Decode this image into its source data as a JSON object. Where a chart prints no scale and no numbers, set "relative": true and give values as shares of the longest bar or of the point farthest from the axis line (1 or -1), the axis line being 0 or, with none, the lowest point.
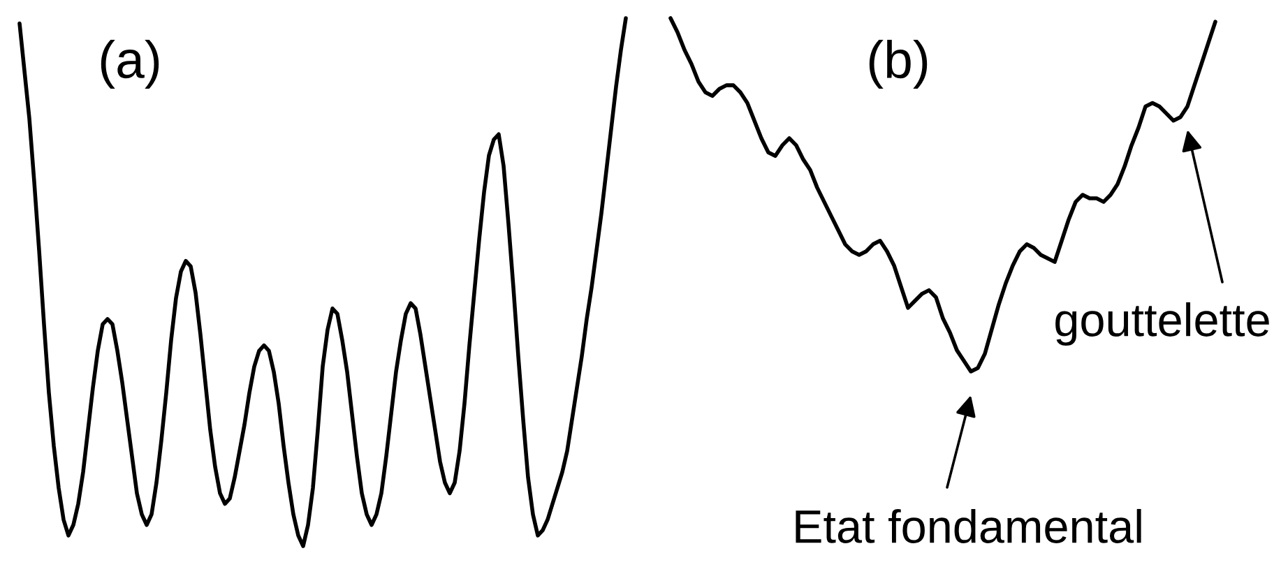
{
  "chart_data": [
    {
      "type": "line",
      "title": "(a)",
      "relative": true,
      "categories": [
        null,
        null,
        null,
        null,
        null,
        null,
        null,
        null,
        null,
        null,
        null,
        null,
        null,
        null,
        null,
        null,
        null,
        null,
        null,
        null,
        null,
        null,
        null,
        null,
        null,
        null,
        null,
        null,
        null,
        null,
        null,
        null,
        null,
        null,
        null,
        null,
        null,
        null,
        null,
        null,
        null,
        null,
        null,
        null,
        null,
        null,
        null,
        null,
        null,
        null,
        null,
        null,
        null,
        null,
        null,
        null,
        null,
        null,
        null,
        null,
        null,
        null,
        null,
        null,
        null,
        null,
        null,
        null,
        null,
        null,
        null,
        null,
        null,
        null,
        null,
        null,
        null,
        null,
        null,
        null,
        null,
        null,
        null,
        null,
        null,
        null,
        null,
        null,
        null,
        null,
        null,
        null,
        null,
        null,
        null,
        null,
        null,
        null,
        null,
        null,
        null,
        null,
        null,
        null,
        null,
        null,
        null,
        null,
        null,
        null,
        null,
        null,
        null,
        null,
        null,
        null,
        null,
        null,
        null,
        null,
        null,
        null,
        null,
        null,
        null
      ],
      "series": [
        {
          "color": "#000000",
          "values": [
            0.99,
            0.9,
            0.81,
            0.69,
            0.56,
            0.42,
            0.29,
            0.19,
            0.11,
            0.05,
            0.02,
            0.04,
            0.08,
            0.14,
            0.22,
            0.3,
            0.37,
            0.42,
            0.43,
            0.42,
            0.37,
            0.31,
            0.24,
            0.17,
            0.1,
            0.06,
            0.04,
            0.06,
            0.12,
            0.2,
            0.29,
            0.39,
            0.47,
            0.52,
            0.54,
            0.53,
            0.48,
            0.4,
            0.31,
            0.22,
            0.15,
            0.1,
            0.08,
            0.09,
            0.13,
            0.18,
            0.23,
            0.29,
            0.34,
            0.37,
            0.38,
            0.37,
            0.33,
            0.27,
            0.19,
            0.12,
            0.06,
            0.02,
            0.0,
            0.04,
            0.11,
            0.22,
            0.34,
            0.41,
            0.45,
            0.44,
            0.39,
            0.33,
            0.25,
            0.17,
            0.1,
            0.06,
            0.04,
            0.06,
            0.1,
            0.17,
            0.25,
            0.33,
            0.39,
            0.44,
            0.46,
            0.45,
            0.4,
            0.34,
            0.28,
            0.22,
            0.16,
            0.12,
            0.1,
            0.12,
            0.18,
            0.27,
            0.38,
            0.48,
            0.58,
            0.67,
            0.74,
            0.77,
            0.78,
            0.72,
            0.61,
            0.49,
            0.36,
            0.24,
            0.13,
            0.06,
            0.02,
            0.03,
            0.05,
            0.08,
            0.11,
            0.14,
            0.18,
            0.24,
            0.3,
            0.36,
            0.43,
            0.49,
            0.56,
            0.63,
            0.71,
            0.79,
            0.87,
            0.94,
            1.0
          ]
        }
      ]
    },
    {
      "type": "line",
      "title": "(b)",
      "relative": true,
      "categories": [
        null,
        null,
        null,
        null,
        null,
        null,
        null,
        null,
        null,
        null,
        null,
        null,
        null,
        null,
        null,
        null,
        null,
        null,
        null,
        null,
        null,
        null,
        null,
        null,
        null,
        null,
        null,
        null,
        null,
        null,
        null,
        null,
        null,
        null,
        null,
        null,
        null,
        null,
        null,
        null,
        null,
        null,
        null,
        null,
        null,
        null,
        null,
        null,
        null,
        null,
        null,
        null,
        null,
        null,
        null,
        null,
        null,
        null,
        null,
        null,
        null,
        null,
        null,
        null,
        null,
        null,
        null,
        null,
        null,
        null,
        null,
        null,
        null,
        null,
        null,
        null,
        null,
        null,
        null
      ],
      "series": [
        {
          "color": "#000000",
          "values": [
            1.0,
            0.96,
            0.91,
            0.87,
            0.82,
            0.79,
            0.78,
            0.8,
            0.81,
            0.81,
            0.79,
            0.76,
            0.71,
            0.66,
            0.62,
            0.61,
            0.64,
            0.66,
            0.64,
            0.6,
            0.57,
            0.52,
            0.48,
            0.44,
            0.4,
            0.36,
            0.34,
            0.33,
            0.34,
            0.36,
            0.37,
            0.34,
            0.3,
            0.24,
            0.18,
            0.2,
            0.22,
            0.23,
            0.21,
            0.15,
            0.11,
            0.06,
            0.03,
            0.0,
            0.01,
            0.05,
            0.12,
            0.19,
            0.25,
            0.3,
            0.34,
            0.36,
            0.35,
            0.33,
            0.32,
            0.31,
            0.37,
            0.43,
            0.48,
            0.5,
            0.49,
            0.49,
            0.48,
            0.5,
            0.53,
            0.58,
            0.64,
            0.69,
            0.75,
            0.76,
            0.75,
            0.73,
            0.71,
            0.72,
            0.75,
            0.81,
            0.87,
            0.93,
            0.99
          ]
        }
      ],
      "annotations": [
        "Etat fondamental",
        "gouttelette"
      ]
    }
  ]
}
